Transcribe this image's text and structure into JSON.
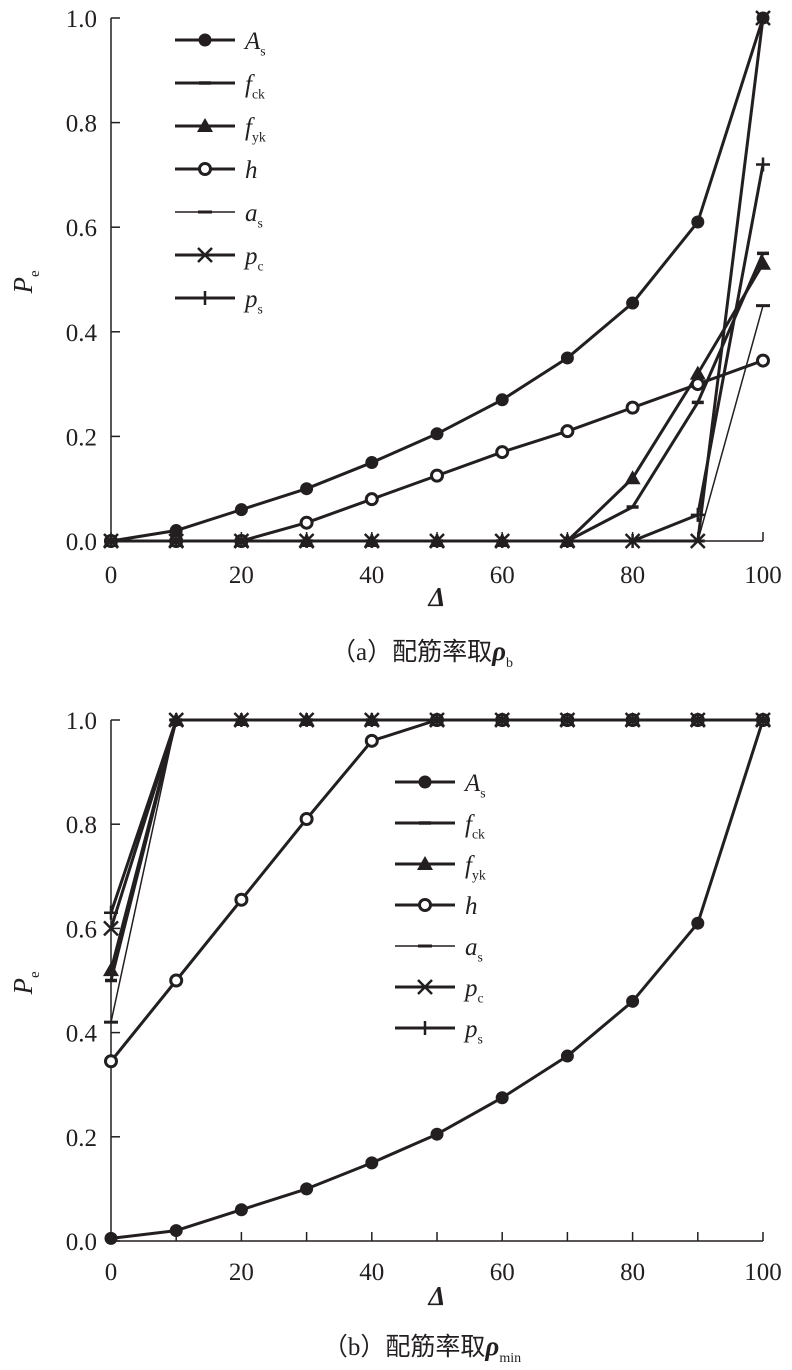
{
  "chart_data": [
    {
      "type": "line",
      "caption": {
        "prefix": "（a）配筋率取",
        "symbol": "ρ",
        "sub": "b"
      },
      "xlabel": "Δ",
      "ylabel": {
        "main": "P",
        "sub": "e"
      },
      "xlim": [
        0,
        100
      ],
      "ylim": [
        0,
        1.0
      ],
      "xticks": [
        "0",
        "20",
        "40",
        "60",
        "80",
        "100"
      ],
      "yticks": [
        "0.0",
        "0.2",
        "0.4",
        "0.6",
        "0.8",
        "1.0"
      ],
      "grid": false,
      "legend_position": "top-left",
      "x": [
        0,
        10,
        20,
        30,
        40,
        50,
        60,
        70,
        80,
        90,
        100
      ],
      "series": [
        {
          "name": "A",
          "sub": "s",
          "marker": "filled-circle",
          "values": [
            0,
            0.02,
            0.06,
            0.1,
            0.15,
            0.205,
            0.27,
            0.35,
            0.455,
            0.61,
            1.0
          ]
        },
        {
          "name": "f",
          "sub": "ck",
          "marker": "dash",
          "values": [
            0,
            0,
            0,
            0,
            0,
            0,
            0,
            0,
            0.065,
            0.265,
            0.55
          ]
        },
        {
          "name": "f",
          "sub": "yk",
          "marker": "filled-triangle",
          "values": [
            0,
            0,
            0,
            0,
            0,
            0,
            0,
            0,
            0.12,
            0.32,
            0.53
          ]
        },
        {
          "name": "h",
          "sub": "",
          "marker": "open-circle",
          "values": [
            0,
            0,
            0,
            0.035,
            0.08,
            0.125,
            0.17,
            0.21,
            0.255,
            0.3,
            0.345
          ]
        },
        {
          "name": "a",
          "sub": "s",
          "marker": "dash-thin",
          "values": [
            0,
            0,
            0,
            0,
            0,
            0,
            0,
            0,
            0,
            0,
            0.45
          ]
        },
        {
          "name": "p",
          "sub": "c",
          "marker": "cross",
          "values": [
            0,
            0,
            0,
            0,
            0,
            0,
            0,
            0,
            0,
            0,
            1.0
          ]
        },
        {
          "name": "p",
          "sub": "s",
          "marker": "plus",
          "values": [
            0,
            0,
            0,
            0,
            0,
            0,
            0,
            0,
            0,
            0.05,
            0.72
          ]
        }
      ]
    },
    {
      "type": "line",
      "caption": {
        "prefix": "（b）配筋率取",
        "symbol": "ρ",
        "sub": "min"
      },
      "xlabel": "Δ",
      "ylabel": {
        "main": "P",
        "sub": "e"
      },
      "xlim": [
        0,
        100
      ],
      "ylim": [
        0,
        1.0
      ],
      "xticks": [
        "0",
        "20",
        "40",
        "60",
        "80",
        "100"
      ],
      "yticks": [
        "0.0",
        "0.2",
        "0.4",
        "0.6",
        "0.8",
        "1.0"
      ],
      "grid": false,
      "legend_position": "center",
      "x": [
        0,
        10,
        20,
        30,
        40,
        50,
        60,
        70,
        80,
        90,
        100
      ],
      "series": [
        {
          "name": "A",
          "sub": "s",
          "marker": "filled-circle",
          "values": [
            0.005,
            0.02,
            0.06,
            0.1,
            0.15,
            0.205,
            0.275,
            0.355,
            0.46,
            0.61,
            1.0
          ]
        },
        {
          "name": "f",
          "sub": "ck",
          "marker": "dash",
          "values": [
            0.5,
            1,
            1,
            1,
            1,
            1,
            1,
            1,
            1,
            1,
            1
          ]
        },
        {
          "name": "f",
          "sub": "yk",
          "marker": "filled-triangle",
          "values": [
            0.52,
            1,
            1,
            1,
            1,
            1,
            1,
            1,
            1,
            1,
            1
          ]
        },
        {
          "name": "h",
          "sub": "",
          "marker": "open-circle",
          "values": [
            0.345,
            0.5,
            0.655,
            0.81,
            0.96,
            1,
            1,
            1,
            1,
            1,
            1
          ]
        },
        {
          "name": "a",
          "sub": "s",
          "marker": "dash-thin",
          "values": [
            0.42,
            1,
            1,
            1,
            1,
            1,
            1,
            1,
            1,
            1,
            1
          ]
        },
        {
          "name": "p",
          "sub": "c",
          "marker": "cross",
          "values": [
            0.6,
            1,
            1,
            1,
            1,
            1,
            1,
            1,
            1,
            1,
            1
          ]
        },
        {
          "name": "p",
          "sub": "s",
          "marker": "plus",
          "values": [
            0.63,
            1,
            1,
            1,
            1,
            1,
            1,
            1,
            1,
            1,
            1
          ]
        }
      ]
    }
  ]
}
